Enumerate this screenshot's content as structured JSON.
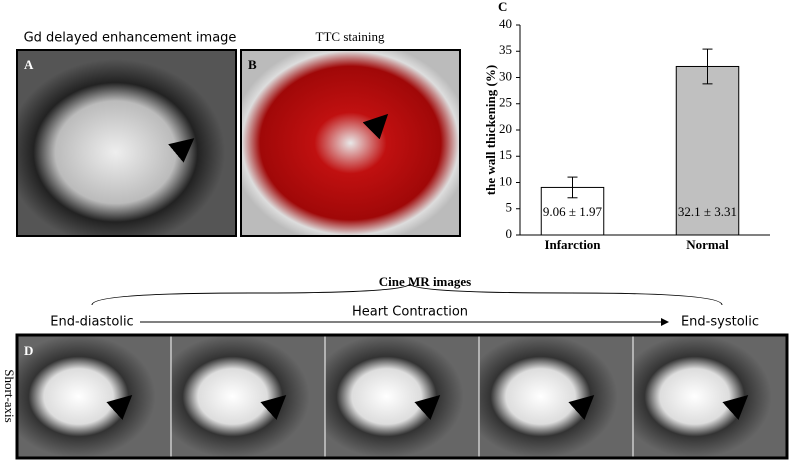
{
  "figure": {
    "panel_a": {
      "label": "A",
      "title": "Gd delayed enhancement image"
    },
    "panel_b": {
      "label": "B",
      "title": "TTC staining"
    },
    "panel_d": {
      "label": "D",
      "title": "Cine MR images",
      "start": "End-diastolic",
      "middle": "Heart Contraction",
      "end": "End-systolic",
      "side": "Short-axis"
    }
  },
  "chart_data": {
    "type": "bar",
    "panel_label": "C",
    "ylabel": "the wall thickening (%)",
    "categories": [
      "Infarction",
      "Normal"
    ],
    "values": [
      9.06,
      32.1
    ],
    "errors": [
      1.97,
      3.31
    ],
    "value_labels": [
      "9.06 ± 1.97",
      "32.1 ± 3.31"
    ],
    "colors": [
      "#ffffff",
      "#c0c0c0"
    ],
    "ylim": [
      0,
      40
    ],
    "yticks": [
      0,
      5,
      10,
      15,
      20,
      25,
      30,
      35,
      40
    ],
    "grid": false
  }
}
